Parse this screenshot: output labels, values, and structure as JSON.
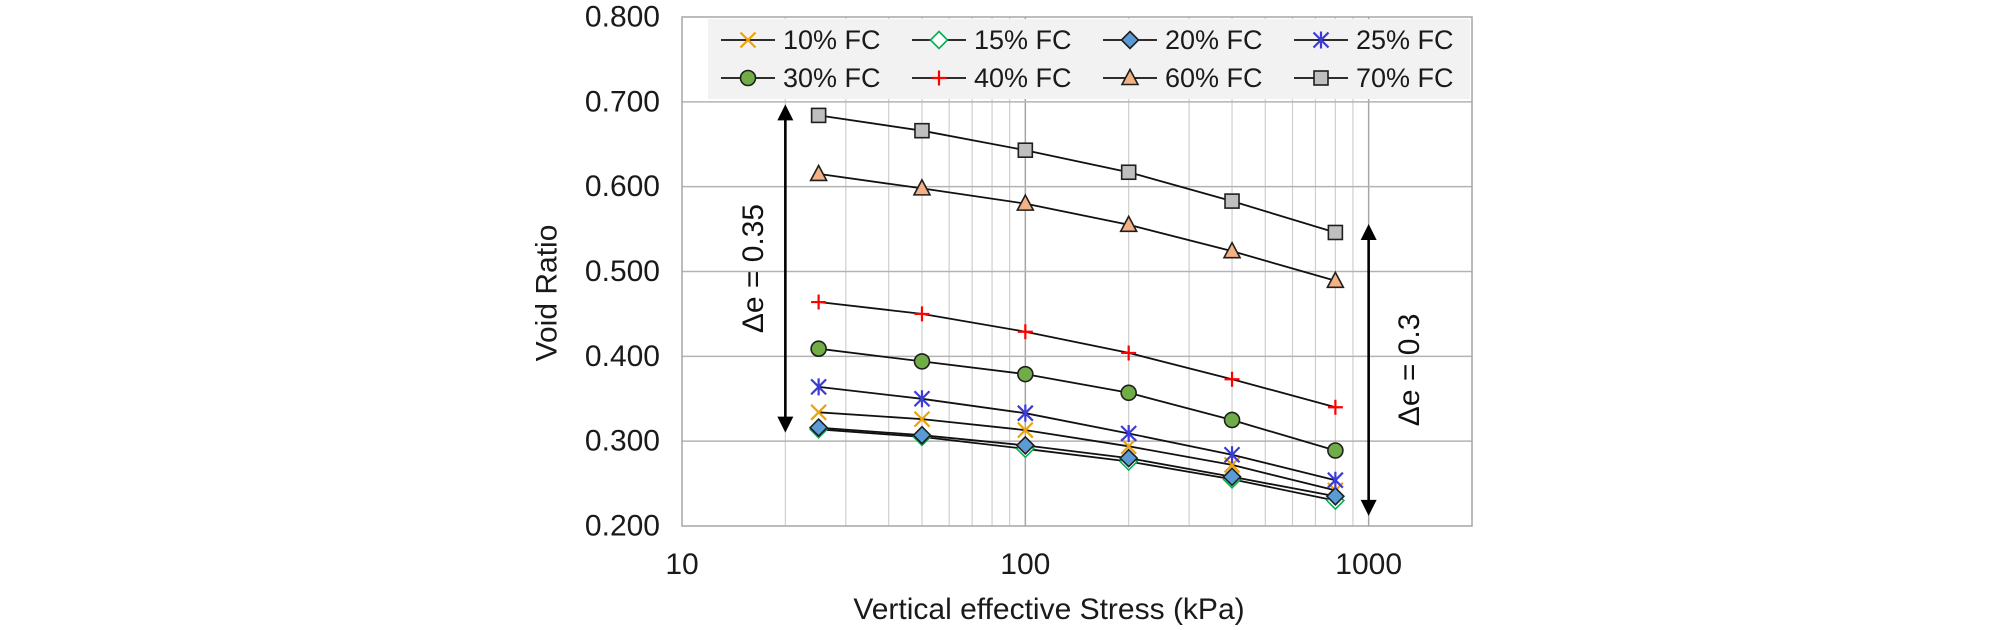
{
  "chart_data": {
    "type": "line",
    "xscale": "log",
    "xlabel": "Vertical effective Stress (kPa)",
    "ylabel": "Void Ratio",
    "xlim": [
      10,
      2000
    ],
    "ylim": [
      0.2,
      0.8
    ],
    "xtick_labels": [
      "10",
      "100",
      "1000"
    ],
    "ytick_labels": [
      "0.200",
      "0.300",
      "0.400",
      "0.500",
      "0.600",
      "0.700",
      "0.800"
    ],
    "grid": true,
    "legend_position": "top-right",
    "x": [
      25,
      50,
      100,
      200,
      400,
      800
    ],
    "series": [
      {
        "name": "10% FC",
        "marker": "x",
        "color": "#f0a202",
        "values": [
          0.334,
          0.326,
          0.313,
          0.294,
          0.272,
          0.242
        ]
      },
      {
        "name": "15% FC",
        "marker": "diamond",
        "color": "#00b050",
        "fill": "#ffffff",
        "edge": "#00b050",
        "values": [
          0.314,
          0.305,
          0.291,
          0.276,
          0.255,
          0.23
        ]
      },
      {
        "name": "20% FC",
        "marker": "diamond",
        "color": "#5b9bd5",
        "fill": "#5b9bd5",
        "edge": "#1f1f1f",
        "values": [
          0.316,
          0.307,
          0.295,
          0.28,
          0.258,
          0.235
        ]
      },
      {
        "name": "25% FC",
        "marker": "asterisk",
        "color": "#3b3bd6",
        "values": [
          0.364,
          0.35,
          0.333,
          0.309,
          0.284,
          0.254
        ]
      },
      {
        "name": "30% FC",
        "marker": "circle",
        "color": "#70ad47",
        "fill": "#70ad47",
        "edge": "#1f1f1f",
        "values": [
          0.409,
          0.394,
          0.379,
          0.357,
          0.325,
          0.289
        ]
      },
      {
        "name": "40% FC",
        "marker": "plus",
        "color": "#ff0000",
        "values": [
          0.464,
          0.45,
          0.429,
          0.404,
          0.373,
          0.34
        ]
      },
      {
        "name": "60% FC",
        "marker": "triangle",
        "color": "#f4b183",
        "fill": "#f4b183",
        "edge": "#1f1f1f",
        "values": [
          0.615,
          0.598,
          0.58,
          0.555,
          0.524,
          0.489
        ]
      },
      {
        "name": "70% FC",
        "marker": "square",
        "color": "#bfbfbf",
        "fill": "#bfbfbf",
        "edge": "#1f1f1f",
        "values": [
          0.684,
          0.666,
          0.643,
          0.617,
          0.583,
          0.546
        ]
      }
    ],
    "annotations": [
      {
        "text": "Δe = 0.35",
        "x": 20,
        "y_from": 0.697,
        "y_to": 0.31,
        "label_side": "left"
      },
      {
        "text": "Δe = 0.3",
        "x": 1000,
        "y_from": 0.556,
        "y_to": 0.212,
        "label_side": "right"
      }
    ]
  }
}
